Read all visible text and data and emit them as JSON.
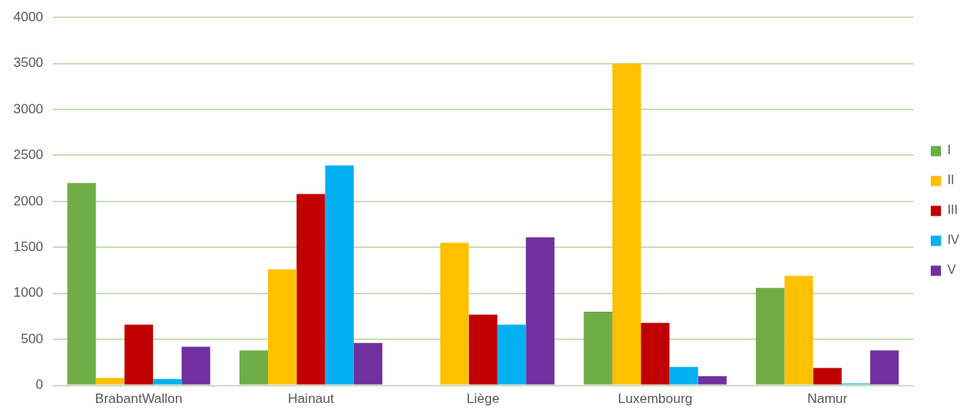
{
  "chart_data": {
    "type": "bar",
    "categories": [
      "BrabantWallon",
      "Hainaut",
      "Liège",
      "Luxembourg",
      "Namur"
    ],
    "series": [
      {
        "name": "I",
        "color": "#70ad47",
        "values": [
          2200,
          380,
          0,
          800,
          1060
        ]
      },
      {
        "name": "II",
        "color": "#ffc000",
        "values": [
          80,
          1260,
          1550,
          3500,
          1190
        ]
      },
      {
        "name": "III",
        "color": "#c00000",
        "values": [
          660,
          2080,
          770,
          680,
          190
        ]
      },
      {
        "name": "IV",
        "color": "#00b0f0",
        "values": [
          70,
          2390,
          660,
          200,
          20
        ]
      },
      {
        "name": "V",
        "color": "#7030a0",
        "values": [
          420,
          460,
          1610,
          100,
          380
        ]
      }
    ],
    "ylim": [
      0,
      4000
    ],
    "yticks": [
      0,
      500,
      1000,
      1500,
      2000,
      2500,
      3000,
      3500,
      4000
    ],
    "grid": "y",
    "legend": "right"
  }
}
